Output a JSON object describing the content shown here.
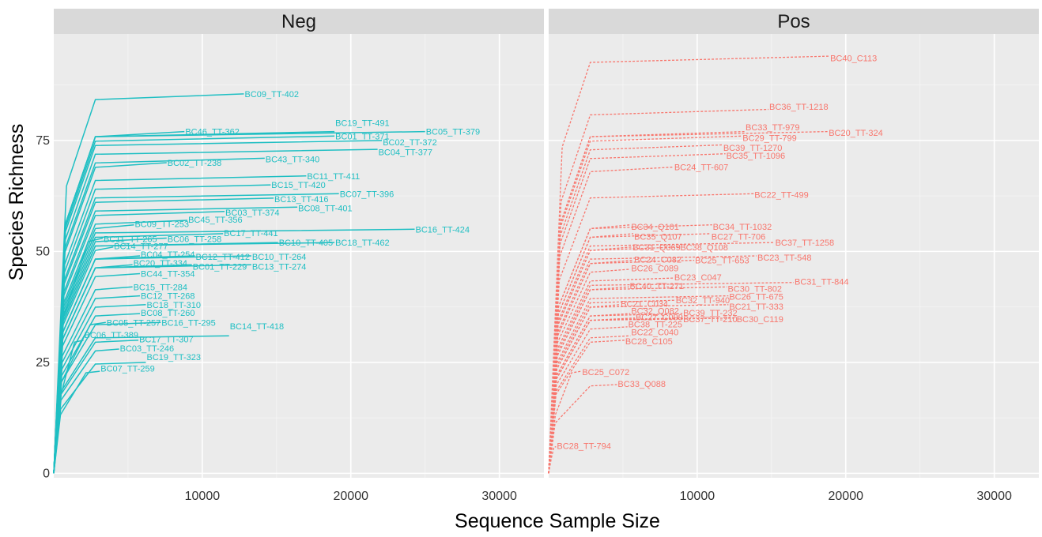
{
  "chart_data": {
    "type": "line",
    "xlabel": "Sequence Sample Size",
    "ylabel": "Species Richness",
    "xlim": [
      0,
      33000
    ],
    "ylim": [
      -1,
      99
    ],
    "x_ticks": [
      10000,
      20000,
      30000
    ],
    "x_tick_labels": [
      "10000",
      "20000",
      "30000"
    ],
    "y_ticks": [
      0,
      25,
      50,
      75
    ],
    "y_tick_labels": [
      "0",
      "25",
      "50",
      "75"
    ],
    "grid": true,
    "colors": {
      "Neg": "#1fbfc3",
      "Pos": "#f8766d",
      "panel_bg": "#ebebeb",
      "strip_bg": "#d9d9d9"
    },
    "panels": [
      {
        "name": "Neg",
        "line_style": "solid",
        "series": [
          {
            "name": "BC09_TT-402",
            "x": 12800,
            "y": 85.5,
            "label_y": 85.5
          },
          {
            "name": "BC19_TT-491",
            "x": 18900,
            "y": 77,
            "label_y": 79
          },
          {
            "name": "BC05_TT-379",
            "x": 25000,
            "y": 77,
            "label_y": 77
          },
          {
            "name": "BC46_TT-362",
            "x": 8800,
            "y": 77,
            "label_y": 77
          },
          {
            "name": "BC01_TT-371",
            "x": 18900,
            "y": 76,
            "label_y": 76
          },
          {
            "name": "BC02_TT-372",
            "x": 22100,
            "y": 75,
            "label_y": 74.6
          },
          {
            "name": "BC04_TT-377",
            "x": 21800,
            "y": 73,
            "label_y": 72.4
          },
          {
            "name": "BC43_TT-340",
            "x": 14200,
            "y": 71,
            "label_y": 70.8
          },
          {
            "name": "BC02_TT-238",
            "x": 7600,
            "y": 70,
            "label_y": 70
          },
          {
            "name": "BC11_TT-411",
            "x": 17000,
            "y": 67,
            "label_y": 67
          },
          {
            "name": "BC15_TT-420",
            "x": 14600,
            "y": 65,
            "label_y": 65
          },
          {
            "name": "BC07_TT-396",
            "x": 19200,
            "y": 63,
            "label_y": 63
          },
          {
            "name": "BC13_TT-416",
            "x": 14800,
            "y": 62,
            "label_y": 61.8
          },
          {
            "name": "BC08_TT-401",
            "x": 16400,
            "y": 60,
            "label_y": 59.8
          },
          {
            "name": "BC03_TT-374",
            "x": 11500,
            "y": 59,
            "label_y": 58.8
          },
          {
            "name": "BC45_TT-356",
            "x": 9000,
            "y": 57,
            "label_y": 57.2
          },
          {
            "name": "BC09_TT-253",
            "x": 5400,
            "y": 56,
            "label_y": 56.2
          },
          {
            "name": "BC16_TT-424",
            "x": 24300,
            "y": 55,
            "label_y": 55
          },
          {
            "name": "BC17_TT-441",
            "x": 11400,
            "y": 54,
            "label_y": 54.2
          },
          {
            "name": "BC11_TT-265",
            "x": 3300,
            "y": 53,
            "label_y": 52.8
          },
          {
            "name": "BC06_TT-258",
            "x": 7600,
            "y": 53,
            "label_y": 52.8
          },
          {
            "name": "BC10_TT-405",
            "x": 15100,
            "y": 52,
            "label_y": 52
          },
          {
            "name": "BC18_TT-462",
            "x": 18900,
            "y": 52,
            "label_y": 52
          },
          {
            "name": "BC14_TT-277",
            "x": 4000,
            "y": 51,
            "label_y": 51.2
          },
          {
            "name": "BC04_TT-254",
            "x": 5800,
            "y": 49,
            "label_y": 49.4
          },
          {
            "name": "BC12_TT-412",
            "x": 9500,
            "y": 49,
            "label_y": 48.8
          },
          {
            "name": "BC10_TT-264",
            "x": 13300,
            "y": 49,
            "label_y": 48.8
          },
          {
            "name": "BC20_TT-334",
            "x": 5300,
            "y": 47,
            "label_y": 47.4
          },
          {
            "name": "BC01_TT-229",
            "x": 9300,
            "y": 47,
            "label_y": 46.6
          },
          {
            "name": "BC13_TT-274",
            "x": 13300,
            "y": 47,
            "label_y": 46.6
          },
          {
            "name": "BC44_TT-354",
            "x": 5800,
            "y": 45,
            "label_y": 45
          },
          {
            "name": "BC15_TT-284",
            "x": 5300,
            "y": 42,
            "label_y": 42
          },
          {
            "name": "BC12_TT-268",
            "x": 5800,
            "y": 40,
            "label_y": 40
          },
          {
            "name": "BC18_TT-310",
            "x": 6200,
            "y": 38,
            "label_y": 38
          },
          {
            "name": "BC08_TT-260",
            "x": 5800,
            "y": 36,
            "label_y": 36.2
          },
          {
            "name": "BC05_TT-257",
            "x": 3500,
            "y": 34,
            "label_y": 34
          },
          {
            "name": "BC16_TT-295",
            "x": 7200,
            "y": 34,
            "label_y": 34
          },
          {
            "name": "BC14_TT-418",
            "x": 11800,
            "y": 31,
            "label_y": 33.2
          },
          {
            "name": "BC06_TT-389",
            "x": 2000,
            "y": 30,
            "label_y": 31.2
          },
          {
            "name": "BC17_TT-307",
            "x": 5700,
            "y": 30,
            "label_y": 30.2
          },
          {
            "name": "BC03_TT-246",
            "x": 4400,
            "y": 28,
            "label_y": 28.2
          },
          {
            "name": "BC19_TT-323",
            "x": 6200,
            "y": 25,
            "label_y": 26.2
          },
          {
            "name": "BC07_TT-259",
            "x": 3100,
            "y": 23,
            "label_y": 23.6
          }
        ]
      },
      {
        "name": "Pos",
        "line_style": "dashed",
        "series": [
          {
            "name": "BC40_C113",
            "x": 18900,
            "y": 94,
            "label_y": 93.6
          },
          {
            "name": "BC36_TT-1218",
            "x": 14800,
            "y": 82,
            "label_y": 82.6
          },
          {
            "name": "BC33_TT-979",
            "x": 13200,
            "y": 77,
            "label_y": 78
          },
          {
            "name": "BC20_TT-324",
            "x": 18800,
            "y": 77,
            "label_y": 76.8
          },
          {
            "name": "BC29_TT-799",
            "x": 13000,
            "y": 76,
            "label_y": 75.6
          },
          {
            "name": "BC39_TT-1270",
            "x": 11700,
            "y": 74,
            "label_y": 73.4
          },
          {
            "name": "BC35_TT-1096",
            "x": 11900,
            "y": 72,
            "label_y": 71.6
          },
          {
            "name": "BC24_TT-607",
            "x": 8400,
            "y": 69,
            "label_y": 69
          },
          {
            "name": "BC22_TT-499",
            "x": 13800,
            "y": 63,
            "label_y": 62.8
          },
          {
            "name": "BC34_Q101",
            "x": 5500,
            "y": 56,
            "label_y": 55.6
          },
          {
            "name": "BC34_TT-1032",
            "x": 11000,
            "y": 56,
            "label_y": 55.6
          },
          {
            "name": "BC35_Q107",
            "x": 5700,
            "y": 54,
            "label_y": 53.4
          },
          {
            "name": "BC27_TT-706",
            "x": 10900,
            "y": 54,
            "label_y": 53.4
          },
          {
            "name": "BC37_TT-1258",
            "x": 15200,
            "y": 52,
            "label_y": 52
          },
          {
            "name": "BC31_Q069",
            "x": 5600,
            "y": 51,
            "label_y": 51
          },
          {
            "name": "BC38_Q108",
            "x": 8800,
            "y": 51,
            "label_y": 51
          },
          {
            "name": "BC23_TT-548",
            "x": 14000,
            "y": 49,
            "label_y": 48.6
          },
          {
            "name": "BC24_C082",
            "x": 5700,
            "y": 48,
            "label_y": 48.2
          },
          {
            "name": "BC25_TT-653",
            "x": 9800,
            "y": 48,
            "label_y": 48
          },
          {
            "name": "BC26_C089",
            "x": 5500,
            "y": 46,
            "label_y": 46.2
          },
          {
            "name": "BC23_C047",
            "x": 8400,
            "y": 44,
            "label_y": 44.2
          },
          {
            "name": "BC31_TT-844",
            "x": 16500,
            "y": 43,
            "label_y": 43.2
          },
          {
            "name": "BC40_TT-271",
            "x": 5400,
            "y": 42,
            "label_y": 42.2
          },
          {
            "name": "BC30_TT-802",
            "x": 12000,
            "y": 42,
            "label_y": 41.6
          },
          {
            "name": "BC26_TT-675",
            "x": 12100,
            "y": 40,
            "label_y": 39.8
          },
          {
            "name": "BC32_TT-940",
            "x": 8500,
            "y": 39,
            "label_y": 39
          },
          {
            "name": "BC21_C034",
            "x": 4800,
            "y": 38,
            "label_y": 38.2
          },
          {
            "name": "BC21_TT-333",
            "x": 12100,
            "y": 38,
            "label_y": 37.6
          },
          {
            "name": "BC32_Q082",
            "x": 5500,
            "y": 36,
            "label_y": 36.6
          },
          {
            "name": "BC39_TT-232",
            "x": 9000,
            "y": 36,
            "label_y": 36.2
          },
          {
            "name": "BC27_C099",
            "x": 5800,
            "y": 35,
            "label_y": 35.2
          },
          {
            "name": "BC37_TT-210",
            "x": 9000,
            "y": 35,
            "label_y": 34.8
          },
          {
            "name": "BC30_C119",
            "x": 12600,
            "y": 35,
            "label_y": 34.8
          },
          {
            "name": "BC38_TT-225",
            "x": 5300,
            "y": 33,
            "label_y": 33.6
          },
          {
            "name": "BC22_C040",
            "x": 5500,
            "y": 31,
            "label_y": 31.8
          },
          {
            "name": "BC28_C105",
            "x": 5100,
            "y": 30,
            "label_y": 29.8
          },
          {
            "name": "BC25_C072",
            "x": 2200,
            "y": 23,
            "label_y": 22.8
          },
          {
            "name": "BC33_Q088",
            "x": 4600,
            "y": 20,
            "label_y": 20.2
          },
          {
            "name": "BC28_TT-794",
            "x": 500,
            "y": 6,
            "label_y": 6.2
          }
        ]
      }
    ]
  }
}
